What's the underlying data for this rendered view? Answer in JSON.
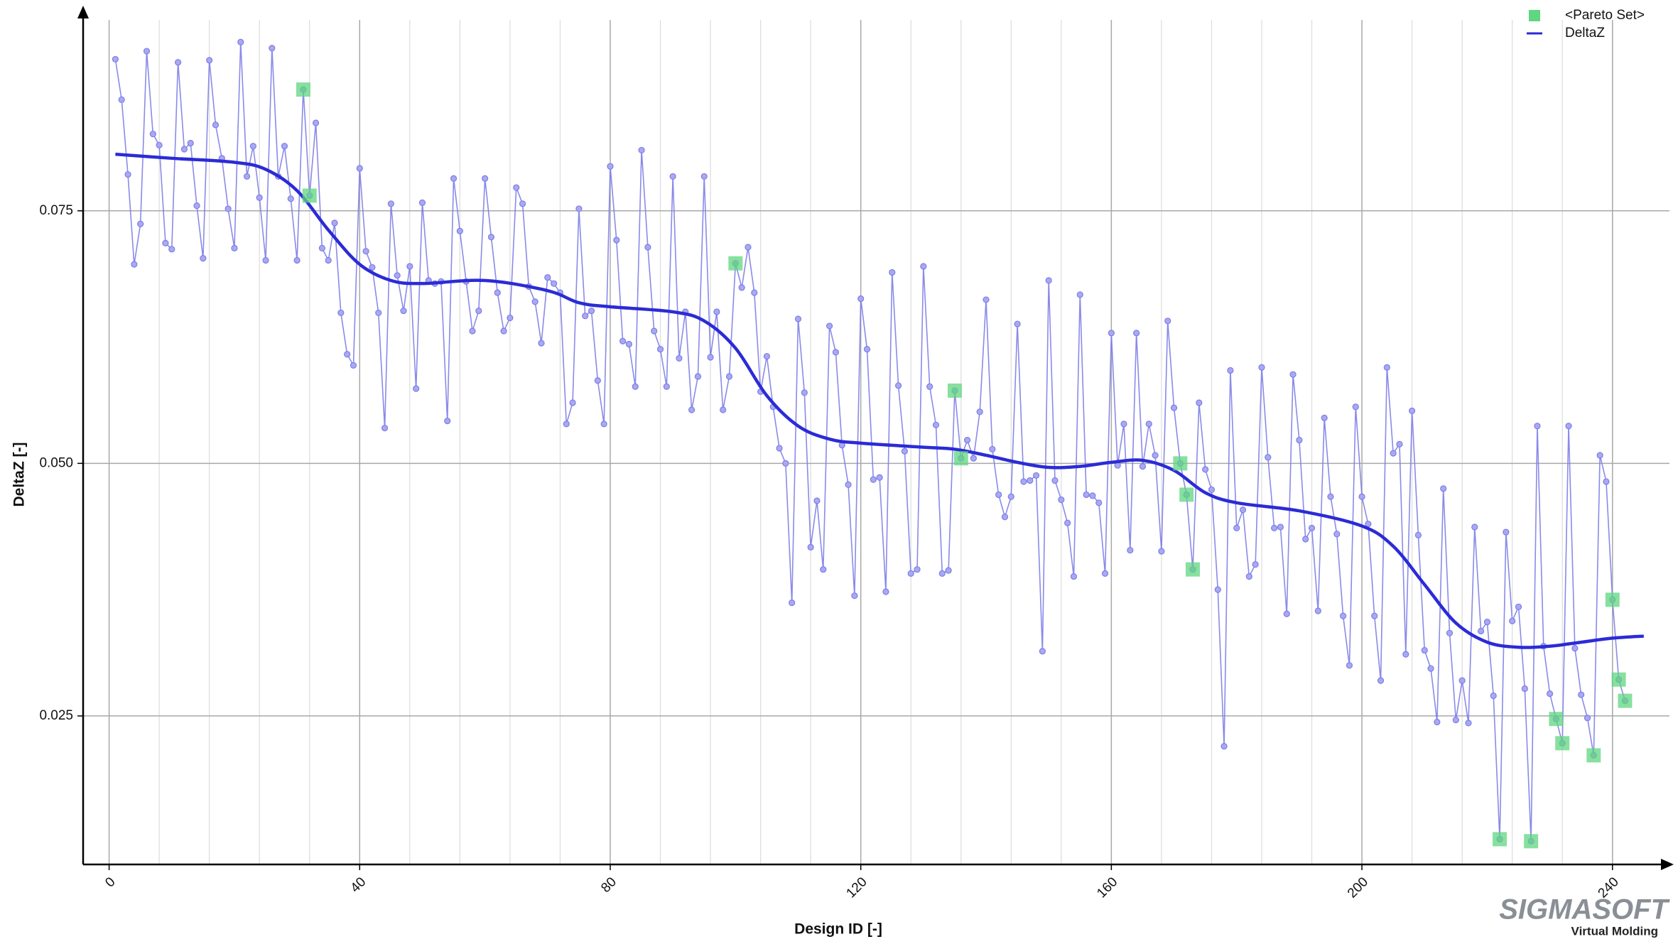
{
  "chart_data": {
    "type": "line",
    "x_label": "Design ID [-]",
    "y_label": "DeltaZ [-]",
    "xlim": [
      -4.15,
      249.1
    ],
    "ylim": [
      0.0103,
      0.0946
    ],
    "xticks": [
      0,
      40,
      80,
      120,
      160,
      200,
      240
    ],
    "xminorticks": [
      8,
      16,
      24,
      32,
      48,
      56,
      64,
      72,
      88,
      96,
      104,
      112,
      128,
      136,
      144,
      152,
      168,
      176,
      184,
      192,
      208,
      216,
      224,
      232
    ],
    "yticks": [
      {
        "value": 0.025,
        "label": "0.025"
      },
      {
        "value": 0.05,
        "label": "0.050"
      },
      {
        "value": 0.075,
        "label": "0.075"
      }
    ],
    "grid": true,
    "legend": "top-right",
    "series": [
      {
        "kind": "line-points",
        "color": "#7d7de8",
        "x": [
          1,
          2,
          3,
          4,
          5,
          6,
          7,
          8,
          9,
          10,
          11,
          12,
          13,
          14,
          15,
          16,
          17,
          18,
          19,
          20,
          21,
          22,
          23,
          24,
          25,
          26,
          27,
          28,
          29,
          30,
          31,
          32,
          33,
          34,
          35,
          36,
          37,
          38,
          39,
          40,
          41,
          42,
          43,
          44,
          45,
          46,
          47,
          48,
          49,
          50,
          51,
          52,
          53,
          54,
          55,
          56,
          57,
          58,
          59,
          60,
          61,
          62,
          63,
          64,
          65,
          66,
          67,
          68,
          69,
          70,
          71,
          72,
          73,
          74,
          75,
          76,
          77,
          78,
          79,
          80,
          81,
          82,
          83,
          84,
          85,
          86,
          87,
          88,
          89,
          90,
          91,
          92,
          93,
          94,
          95,
          96,
          97,
          98,
          99,
          100,
          101,
          102,
          103,
          104,
          105,
          106,
          107,
          108,
          109,
          110,
          111,
          112,
          113,
          114,
          115,
          116,
          117,
          118,
          119,
          120,
          121,
          122,
          123,
          124,
          125,
          126,
          127,
          128,
          129,
          130,
          131,
          132,
          133,
          134,
          135,
          136,
          137,
          138,
          139,
          140,
          141,
          142,
          143,
          144,
          145,
          146,
          147,
          148,
          149,
          150,
          151,
          152,
          153,
          154,
          155,
          156,
          157,
          158,
          159,
          160,
          161,
          162,
          163,
          164,
          165,
          166,
          167,
          168,
          169,
          170,
          171,
          172,
          173,
          174,
          175,
          176,
          177,
          178,
          179,
          180,
          181,
          182,
          183,
          184,
          185,
          186,
          187,
          188,
          189,
          190,
          191,
          192,
          193,
          194,
          195,
          196,
          197,
          198,
          199,
          200,
          201,
          202,
          203,
          204,
          205,
          206,
          207,
          208,
          209,
          210,
          211,
          212,
          213,
          214,
          215,
          216,
          217,
          218,
          219,
          220,
          221,
          222,
          223,
          224,
          225,
          226,
          227,
          228,
          229,
          230,
          231,
          232,
          233,
          234,
          235,
          236,
          237,
          238,
          239,
          240,
          241,
          242
        ],
        "values": [
          0.09,
          0.086,
          0.0786,
          0.0697,
          0.0737,
          0.0908,
          0.0826,
          0.0815,
          0.0718,
          0.0712,
          0.0897,
          0.0811,
          0.0817,
          0.0755,
          0.0703,
          0.0899,
          0.0835,
          0.0802,
          0.0752,
          0.0713,
          0.0917,
          0.0784,
          0.0814,
          0.0763,
          0.0701,
          0.0911,
          0.0784,
          0.0814,
          0.0762,
          0.0701,
          0.087,
          0.0765,
          0.0837,
          0.0713,
          0.0701,
          0.0738,
          0.0649,
          0.0608,
          0.0597,
          0.0792,
          0.071,
          0.0694,
          0.0649,
          0.0535,
          0.0757,
          0.0686,
          0.0651,
          0.0695,
          0.0574,
          0.0758,
          0.0681,
          0.0678,
          0.068,
          0.0542,
          0.0782,
          0.073,
          0.068,
          0.0631,
          0.0651,
          0.0782,
          0.0724,
          0.0669,
          0.0631,
          0.0644,
          0.0773,
          0.0757,
          0.0675,
          0.066,
          0.0619,
          0.0684,
          0.0678,
          0.0669,
          0.0539,
          0.056,
          0.0752,
          0.0646,
          0.0651,
          0.0582,
          0.0539,
          0.0794,
          0.0721,
          0.0621,
          0.0618,
          0.0576,
          0.081,
          0.0714,
          0.0631,
          0.0613,
          0.0576,
          0.0784,
          0.0604,
          0.065,
          0.0553,
          0.0586,
          0.0784,
          0.0605,
          0.065,
          0.0553,
          0.0586,
          0.0698,
          0.0674,
          0.0714,
          0.0669,
          0.0571,
          0.0606,
          0.0556,
          0.0515,
          0.05,
          0.0362,
          0.0643,
          0.057,
          0.0417,
          0.0463,
          0.0395,
          0.0636,
          0.061,
          0.0518,
          0.0479,
          0.0369,
          0.0663,
          0.0613,
          0.0484,
          0.0486,
          0.0373,
          0.0689,
          0.0577,
          0.0512,
          0.0391,
          0.0395,
          0.0695,
          0.0576,
          0.0538,
          0.0391,
          0.0394,
          0.0572,
          0.0505,
          0.0523,
          0.0505,
          0.0551,
          0.0662,
          0.0514,
          0.0469,
          0.0447,
          0.0467,
          0.0638,
          0.0482,
          0.0483,
          0.0488,
          0.0314,
          0.0681,
          0.0483,
          0.0464,
          0.0441,
          0.0388,
          0.0667,
          0.0469,
          0.0468,
          0.0461,
          0.0391,
          0.0629,
          0.0498,
          0.0539,
          0.0414,
          0.0629,
          0.0497,
          0.0539,
          0.0508,
          0.0413,
          0.0641,
          0.0555,
          0.05,
          0.0469,
          0.0395,
          0.056,
          0.0494,
          0.0474,
          0.0375,
          0.022,
          0.0592,
          0.0436,
          0.0454,
          0.0388,
          0.04,
          0.0595,
          0.0506,
          0.0436,
          0.0437,
          0.0351,
          0.0588,
          0.0523,
          0.0425,
          0.0436,
          0.0354,
          0.0545,
          0.0467,
          0.043,
          0.0349,
          0.03,
          0.0556,
          0.0467,
          0.044,
          0.0349,
          0.0285,
          0.0595,
          0.051,
          0.0519,
          0.0311,
          0.0552,
          0.0429,
          0.0315,
          0.0297,
          0.0244,
          0.0475,
          0.0332,
          0.0246,
          0.0285,
          0.0243,
          0.0437,
          0.0334,
          0.0343,
          0.027,
          0.0128,
          0.0432,
          0.0344,
          0.0358,
          0.0277,
          0.0126,
          0.0537,
          0.0319,
          0.0272,
          0.0247,
          0.0223,
          0.0537,
          0.0317,
          0.0271,
          0.0248,
          0.0211,
          0.0508,
          0.0482,
          0.0365,
          0.0286,
          0.0265
        ]
      },
      {
        "name": "<Pareto Set>",
        "kind": "squares",
        "color": "#5fd67f",
        "x": [
          31,
          32,
          100,
          135,
          136,
          171,
          172,
          173,
          222,
          227,
          231,
          232,
          237,
          240,
          241,
          242
        ],
        "values": [
          0.087,
          0.0765,
          0.0698,
          0.0572,
          0.0505,
          0.05,
          0.0469,
          0.0395,
          0.0128,
          0.0126,
          0.0247,
          0.0223,
          0.0211,
          0.0365,
          0.0286,
          0.0265
        ]
      },
      {
        "name": "DeltaZ",
        "kind": "curve",
        "color": "#2b2bd6",
        "x": [
          1,
          10,
          20,
          25,
          30,
          35,
          40,
          45,
          50,
          60,
          70,
          75,
          80,
          90,
          95,
          100,
          105,
          110,
          115,
          120,
          130,
          135,
          140,
          145,
          150,
          155,
          160,
          165,
          170,
          175,
          180,
          190,
          200,
          205,
          210,
          215,
          220,
          225,
          230,
          235,
          240,
          245
        ],
        "values": [
          0.0806,
          0.0802,
          0.0798,
          0.0791,
          0.077,
          0.0731,
          0.0697,
          0.0681,
          0.0678,
          0.0681,
          0.0671,
          0.0659,
          0.0655,
          0.065,
          0.0641,
          0.0614,
          0.0567,
          0.0537,
          0.0524,
          0.052,
          0.0516,
          0.0514,
          0.0508,
          0.0501,
          0.0496,
          0.0497,
          0.0501,
          0.0503,
          0.0493,
          0.0471,
          0.0461,
          0.0453,
          0.0438,
          0.0418,
          0.038,
          0.0342,
          0.0323,
          0.0318,
          0.0319,
          0.0323,
          0.0327,
          0.0329
        ]
      }
    ]
  },
  "logo": {
    "text": "SIGMASOFT",
    "tagline": "Virtual Molding"
  }
}
